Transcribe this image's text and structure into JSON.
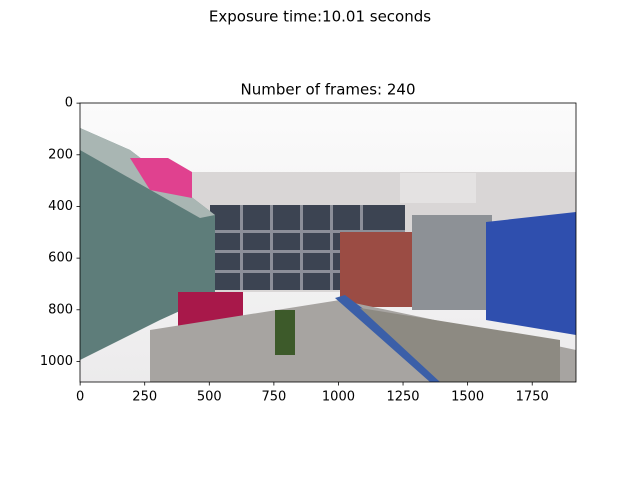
{
  "chart_data": {
    "type": "image",
    "suptitle": "Exposure time:10.01 seconds",
    "title": "Number of frames: 240",
    "xlim": [
      -0.5,
      1919.5
    ],
    "ylim": [
      1079.5,
      -0.5
    ],
    "xticks": [
      0,
      250,
      500,
      750,
      1000,
      1250,
      1500,
      1750
    ],
    "yticks": [
      0,
      200,
      400,
      600,
      800,
      1000
    ]
  }
}
